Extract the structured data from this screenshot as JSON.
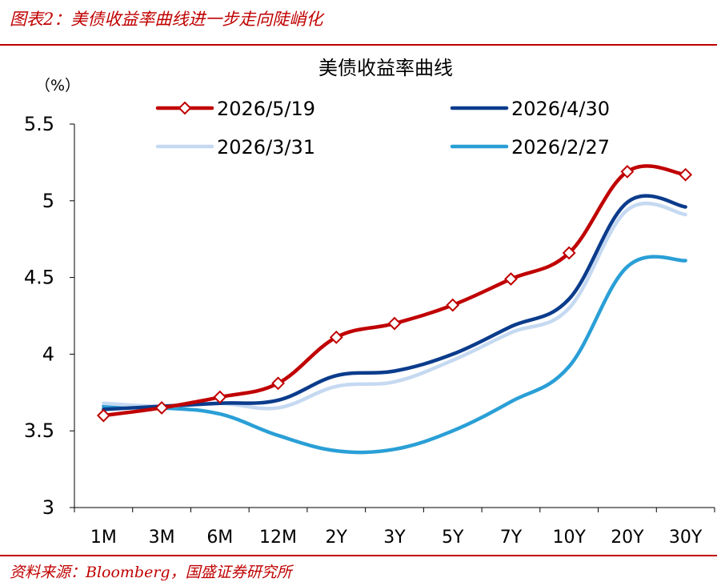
{
  "figure": {
    "title": "图表2：美债收益率曲线进一步走向陡峭化",
    "source": "资料来源：Bloomberg，国盛证券研究所"
  },
  "colors": {
    "accent": "#c00000",
    "series_2026_5_19": "#c00000",
    "series_2026_4_30": "#0b3c8c",
    "series_2026_3_31": "#c5d9f1",
    "series_2026_2_27": "#2a9fd6"
  },
  "chart_data": {
    "type": "line",
    "title": "美债收益率曲线",
    "unit_label": "（%）",
    "xlabel": "",
    "ylabel": "",
    "categories": [
      "1M",
      "3M",
      "6M",
      "12M",
      "2Y",
      "3Y",
      "5Y",
      "7Y",
      "10Y",
      "20Y",
      "30Y"
    ],
    "ylim": [
      3,
      5.5
    ],
    "yticks": [
      3,
      3.5,
      4,
      4.5,
      5,
      5.5
    ],
    "ytick_labels": [
      "3",
      "3.5",
      "4",
      "4.5",
      "5",
      "5.5"
    ],
    "grid": false,
    "legend_position": "top",
    "series": [
      {
        "name": "2026/5/19",
        "color": "#c00000",
        "marker": "diamond",
        "values": [
          3.6,
          3.65,
          3.72,
          3.81,
          4.11,
          4.2,
          4.32,
          4.49,
          4.66,
          5.19,
          5.17
        ]
      },
      {
        "name": "2026/4/30",
        "color": "#0b3c8c",
        "marker": "none",
        "values": [
          3.64,
          3.66,
          3.68,
          3.7,
          3.86,
          3.89,
          4.0,
          4.18,
          4.36,
          4.99,
          4.96
        ]
      },
      {
        "name": "2026/3/31",
        "color": "#c5d9f1",
        "marker": "none",
        "values": [
          3.68,
          3.66,
          3.68,
          3.65,
          3.79,
          3.82,
          3.96,
          4.14,
          4.3,
          4.94,
          4.91
        ]
      },
      {
        "name": "2026/2/27",
        "color": "#2a9fd6",
        "marker": "none",
        "values": [
          3.66,
          3.65,
          3.61,
          3.47,
          3.37,
          3.38,
          3.5,
          3.69,
          3.92,
          4.57,
          4.61
        ]
      }
    ]
  }
}
